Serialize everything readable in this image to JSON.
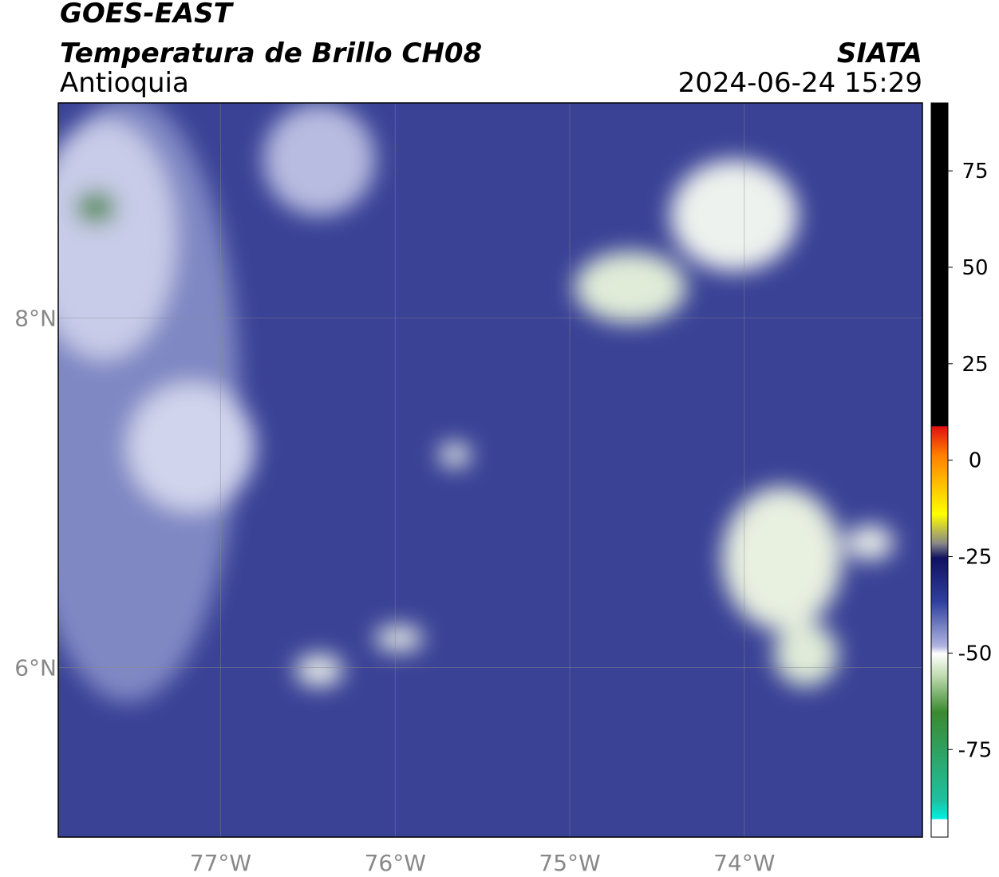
{
  "header": {
    "title": "GOES-EAST",
    "subtitle": "Temperatura de Brillo CH08",
    "region": "Antioquia",
    "source": "SIATA",
    "timestamp": "2024-06-24 15:29"
  },
  "map": {
    "xlim": [
      -77.93,
      -72.98
    ],
    "ylim": [
      5.03,
      9.23
    ],
    "xticks": [
      {
        "value": -77,
        "label": "77°W"
      },
      {
        "value": -76,
        "label": "76°W"
      },
      {
        "value": -75,
        "label": "75°W"
      },
      {
        "value": -74,
        "label": "74°W"
      }
    ],
    "yticks": [
      {
        "value": 8,
        "label": "8°N"
      },
      {
        "value": 6,
        "label": "6°N"
      }
    ]
  },
  "colorbar": {
    "lim": [
      -97.7,
      92.6
    ],
    "ticks": [
      75,
      50,
      25,
      0,
      -25,
      -50,
      -75
    ]
  }
}
